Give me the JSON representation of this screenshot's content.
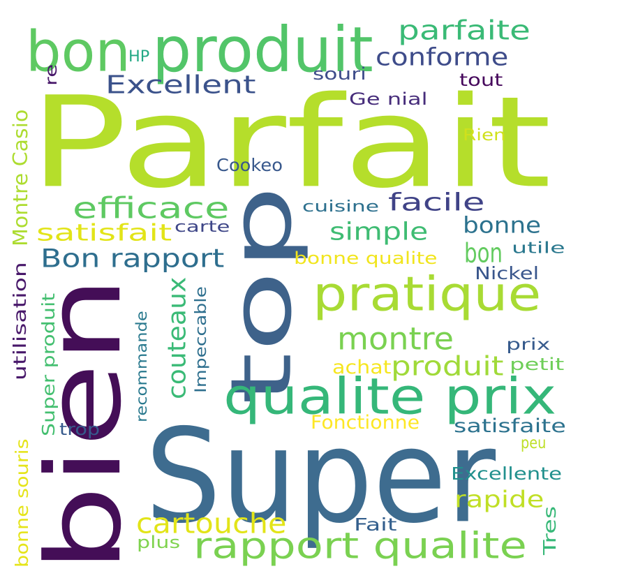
{
  "words": [
    {
      "text": "Parfait",
      "color": "#b5de2b",
      "vertical": false
    },
    {
      "text": "Super",
      "color": "#3e6c8f",
      "vertical": false
    },
    {
      "text": "bien",
      "color": "#440e57",
      "vertical": true
    },
    {
      "text": "top",
      "color": "#3e628a",
      "vertical": true
    },
    {
      "text": "produit",
      "color": "#52c569",
      "vertical": false
    },
    {
      "text": "bon",
      "color": "#5ec962",
      "vertical": false
    },
    {
      "text": "qualite prix",
      "color": "#35b779",
      "vertical": false
    },
    {
      "text": "pratique",
      "color": "#a8db34",
      "vertical": false
    },
    {
      "text": "rapport qualite",
      "color": "#7ad151",
      "vertical": false
    },
    {
      "text": "parfaite",
      "color": "#3aba76",
      "vertical": false
    },
    {
      "text": "conforme",
      "color": "#3e4c8a",
      "vertical": false
    },
    {
      "text": "Excellent",
      "color": "#3b528b",
      "vertical": false
    },
    {
      "text": "efficace",
      "color": "#5ec962",
      "vertical": false
    },
    {
      "text": "facile",
      "color": "#404387",
      "vertical": false
    },
    {
      "text": "simple",
      "color": "#3fbc73",
      "vertical": false
    },
    {
      "text": "bonne",
      "color": "#2c728e",
      "vertical": false
    },
    {
      "text": "satisfait",
      "color": "#e2e418",
      "vertical": false
    },
    {
      "text": "Bon rapport",
      "color": "#2e6e8e",
      "vertical": false
    },
    {
      "text": "bon",
      "color": "#63cb5f",
      "vertical": false
    },
    {
      "text": "montre",
      "color": "#7ad151",
      "vertical": false
    },
    {
      "text": "produit",
      "color": "#a0da39",
      "vertical": false
    },
    {
      "text": "cartouche",
      "color": "#e2e418",
      "vertical": false
    },
    {
      "text": "rapide",
      "color": "#c0df25",
      "vertical": false
    },
    {
      "text": "couteaux",
      "color": "#3aba76",
      "vertical": true
    },
    {
      "text": "HP",
      "color": "#22a884",
      "vertical": false
    },
    {
      "text": "re",
      "color": "#48186a",
      "vertical": true
    },
    {
      "text": "souri",
      "color": "#3e4c8a",
      "vertical": false
    },
    {
      "text": "tout",
      "color": "#46085c",
      "vertical": false
    },
    {
      "text": "Ge nial",
      "color": "#472d7b",
      "vertical": false
    },
    {
      "text": "Rien",
      "color": "#d0e11c",
      "vertical": false
    },
    {
      "text": "Cookeo",
      "color": "#38588c",
      "vertical": false
    },
    {
      "text": "Montre Casio",
      "color": "#addc30",
      "vertical": true
    },
    {
      "text": "cuisine",
      "color": "#2d708e",
      "vertical": false
    },
    {
      "text": "carte",
      "color": "#3f4788",
      "vertical": false
    },
    {
      "text": "bonne qualite",
      "color": "#f1e51d",
      "vertical": false
    },
    {
      "text": "utile",
      "color": "#2a788e",
      "vertical": false
    },
    {
      "text": "Nickel",
      "color": "#39568c",
      "vertical": false
    },
    {
      "text": "utilisation",
      "color": "#48186a",
      "vertical": true
    },
    {
      "text": "Impeccable",
      "color": "#2e6f8e",
      "vertical": true
    },
    {
      "text": "recommande",
      "color": "#29798e",
      "vertical": true
    },
    {
      "text": "Super produit",
      "color": "#44bf70",
      "vertical": true
    },
    {
      "text": "prix",
      "color": "#375b8d",
      "vertical": false
    },
    {
      "text": "achat",
      "color": "#f6e620",
      "vertical": false
    },
    {
      "text": "petit",
      "color": "#6ece58",
      "vertical": false
    },
    {
      "text": "trop",
      "color": "#375a8c",
      "vertical": false
    },
    {
      "text": "Fonctionne",
      "color": "#fde725",
      "vertical": false
    },
    {
      "text": "satisfaite",
      "color": "#2c728e",
      "vertical": false
    },
    {
      "text": "peu",
      "color": "#bddf26",
      "vertical": false
    },
    {
      "text": "bonne souris",
      "color": "#e5e419",
      "vertical": true
    },
    {
      "text": "Excellente",
      "color": "#21908d",
      "vertical": false
    },
    {
      "text": "Fait",
      "color": "#345f8d",
      "vertical": false
    },
    {
      "text": "plus",
      "color": "#7fd34e",
      "vertical": false
    },
    {
      "text": "Tres",
      "color": "#37b878",
      "vertical": true
    }
  ]
}
